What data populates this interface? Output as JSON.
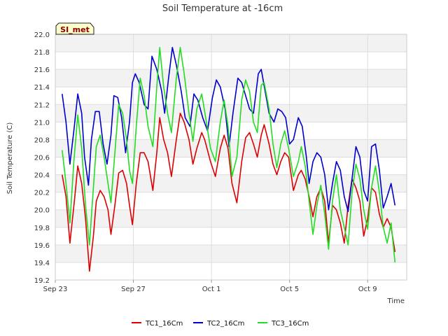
{
  "chart_data": {
    "type": "line",
    "title": "Soil Temperature at -16cm",
    "xlabel": "Time",
    "ylabel": "Soil Temperature (C)",
    "badge": "SI_met",
    "xlim": [
      0,
      18
    ],
    "ylim": [
      19.2,
      22.0
    ],
    "y_ticks": [
      "19.2",
      "19.4",
      "19.6",
      "19.8",
      "20.0",
      "20.2",
      "20.4",
      "20.6",
      "20.8",
      "21.0",
      "21.2",
      "21.4",
      "21.6",
      "21.8",
      "22.0"
    ],
    "x_ticks": [
      {
        "value": 0,
        "label": "Sep 23"
      },
      {
        "value": 4,
        "label": "Sep 27"
      },
      {
        "value": 8,
        "label": "Oct 1"
      },
      {
        "value": 12,
        "label": "Oct 5"
      },
      {
        "value": 16,
        "label": "Oct 9"
      }
    ],
    "series": [
      {
        "name": "TC1_16Cm",
        "color": "#dd0000",
        "x": [
          0.35,
          0.55,
          0.75,
          1.0,
          1.15,
          1.35,
          1.55,
          1.75,
          1.95,
          2.1,
          2.3,
          2.5,
          2.7,
          2.85,
          3.05,
          3.25,
          3.45,
          3.65,
          3.8,
          3.95,
          4.15,
          4.35,
          4.55,
          4.75,
          5.0,
          5.2,
          5.35,
          5.55,
          5.75,
          5.95,
          6.2,
          6.4,
          6.6,
          6.85,
          7.05,
          7.25,
          7.5,
          7.65,
          7.95,
          8.2,
          8.45,
          8.65,
          8.85,
          9.05,
          9.3,
          9.55,
          9.75,
          9.95,
          10.15,
          10.35,
          10.55,
          10.7,
          10.95,
          11.15,
          11.35,
          11.55,
          11.75,
          11.95,
          12.2,
          12.45,
          12.6,
          12.8,
          13.0,
          13.2,
          13.4,
          13.6,
          13.8,
          14.0,
          14.2,
          14.4,
          14.6,
          14.8,
          15.0,
          15.2,
          15.4,
          15.6,
          15.8,
          16.0,
          16.2,
          16.4,
          16.6,
          16.8,
          17.0,
          17.2,
          17.4
        ],
        "values": [
          20.4,
          20.15,
          19.62,
          20.15,
          20.5,
          20.3,
          19.9,
          19.3,
          19.7,
          20.1,
          20.22,
          20.15,
          20.0,
          19.72,
          20.05,
          20.42,
          20.45,
          20.3,
          20.05,
          19.83,
          20.3,
          20.65,
          20.65,
          20.55,
          20.22,
          20.65,
          21.05,
          20.8,
          20.65,
          20.38,
          20.8,
          21.1,
          21.0,
          20.8,
          20.52,
          20.7,
          20.88,
          20.8,
          20.55,
          20.38,
          20.7,
          20.85,
          20.7,
          20.3,
          20.08,
          20.55,
          20.82,
          20.88,
          20.75,
          20.6,
          20.85,
          20.97,
          20.75,
          20.52,
          20.4,
          20.55,
          20.65,
          20.6,
          20.22,
          20.4,
          20.45,
          20.35,
          20.15,
          19.92,
          20.15,
          20.25,
          20.1,
          19.62,
          20.05,
          20.0,
          19.85,
          19.62,
          20.05,
          20.35,
          20.25,
          20.1,
          19.7,
          19.9,
          20.25,
          20.2,
          19.95,
          19.8,
          19.9,
          19.8,
          19.52
        ]
      },
      {
        "name": "TC2_16Cm",
        "color": "#0000cc",
        "x": [
          0.35,
          0.55,
          0.75,
          0.95,
          1.15,
          1.35,
          1.5,
          1.7,
          1.85,
          2.05,
          2.25,
          2.45,
          2.65,
          2.85,
          3.0,
          3.2,
          3.4,
          3.6,
          3.8,
          3.95,
          4.1,
          4.3,
          4.55,
          4.75,
          4.95,
          5.2,
          5.45,
          5.6,
          5.8,
          6.0,
          6.2,
          6.45,
          6.65,
          6.9,
          7.1,
          7.3,
          7.55,
          7.8,
          8.05,
          8.25,
          8.45,
          8.7,
          8.9,
          9.1,
          9.35,
          9.55,
          9.75,
          9.95,
          10.15,
          10.4,
          10.55,
          10.75,
          10.95,
          11.2,
          11.4,
          11.6,
          11.8,
          12.0,
          12.2,
          12.45,
          12.65,
          12.85,
          13.0,
          13.2,
          13.4,
          13.6,
          13.8,
          14.0,
          14.2,
          14.4,
          14.6,
          14.8,
          15.0,
          15.2,
          15.4,
          15.6,
          15.8,
          16.0,
          16.2,
          16.4,
          16.6,
          16.8,
          17.0,
          17.2,
          17.4
        ],
        "values": [
          21.32,
          21.0,
          20.52,
          20.9,
          21.32,
          21.1,
          20.6,
          20.28,
          20.8,
          21.12,
          21.12,
          20.75,
          20.52,
          20.85,
          21.3,
          21.28,
          21.05,
          20.65,
          21.0,
          21.45,
          21.55,
          21.45,
          21.2,
          21.15,
          21.75,
          21.6,
          21.35,
          21.1,
          21.5,
          21.85,
          21.65,
          21.35,
          21.05,
          20.95,
          21.32,
          21.25,
          21.05,
          20.9,
          21.28,
          21.48,
          21.4,
          21.15,
          20.72,
          21.1,
          21.5,
          21.45,
          21.3,
          21.15,
          21.1,
          21.55,
          21.6,
          21.35,
          21.1,
          21.0,
          21.15,
          21.12,
          21.05,
          20.75,
          20.8,
          21.05,
          20.95,
          20.62,
          20.3,
          20.55,
          20.65,
          20.6,
          20.4,
          20.0,
          20.3,
          20.55,
          20.45,
          20.15,
          19.98,
          20.35,
          20.72,
          20.6,
          20.22,
          20.1,
          20.72,
          20.75,
          20.45,
          20.02,
          20.15,
          20.3,
          20.05
        ]
      },
      {
        "name": "TC3_16Cm",
        "color": "#22dd22",
        "x": [
          0.35,
          0.55,
          0.75,
          0.95,
          1.15,
          1.35,
          1.55,
          1.75,
          1.95,
          2.1,
          2.3,
          2.5,
          2.7,
          2.85,
          3.05,
          3.25,
          3.45,
          3.65,
          3.8,
          3.95,
          4.15,
          4.35,
          4.55,
          4.75,
          5.0,
          5.2,
          5.35,
          5.55,
          5.75,
          5.95,
          6.2,
          6.4,
          6.6,
          6.85,
          7.05,
          7.25,
          7.5,
          7.65,
          7.95,
          8.2,
          8.45,
          8.65,
          8.85,
          9.05,
          9.3,
          9.55,
          9.75,
          9.95,
          10.15,
          10.35,
          10.55,
          10.7,
          10.95,
          11.15,
          11.35,
          11.55,
          11.75,
          11.95,
          12.2,
          12.45,
          12.6,
          12.8,
          13.0,
          13.2,
          13.4,
          13.6,
          13.8,
          14.0,
          14.2,
          14.4,
          14.6,
          14.8,
          15.0,
          15.2,
          15.4,
          15.6,
          15.8,
          16.0,
          16.2,
          16.4,
          16.6,
          16.8,
          17.0,
          17.2,
          17.4
        ],
        "values": [
          20.68,
          20.3,
          19.85,
          20.55,
          21.08,
          20.7,
          20.05,
          19.6,
          20.25,
          20.72,
          20.85,
          20.6,
          20.3,
          20.08,
          20.65,
          21.2,
          21.1,
          20.8,
          20.45,
          20.3,
          20.95,
          21.5,
          21.3,
          20.95,
          20.72,
          21.4,
          21.85,
          21.4,
          21.1,
          20.88,
          21.5,
          21.85,
          21.55,
          21.1,
          20.78,
          21.15,
          21.32,
          21.12,
          20.7,
          20.55,
          21.0,
          21.25,
          20.95,
          20.38,
          20.6,
          21.25,
          21.48,
          21.35,
          21.0,
          20.88,
          21.42,
          21.45,
          21.15,
          20.75,
          20.48,
          20.75,
          20.9,
          20.7,
          20.38,
          20.55,
          20.72,
          20.5,
          20.1,
          19.72,
          20.05,
          20.28,
          19.95,
          19.55,
          20.1,
          20.4,
          20.0,
          19.8,
          19.6,
          20.2,
          20.52,
          20.35,
          20.0,
          19.78,
          20.25,
          20.5,
          20.2,
          19.8,
          19.62,
          19.85,
          19.4
        ]
      }
    ]
  }
}
